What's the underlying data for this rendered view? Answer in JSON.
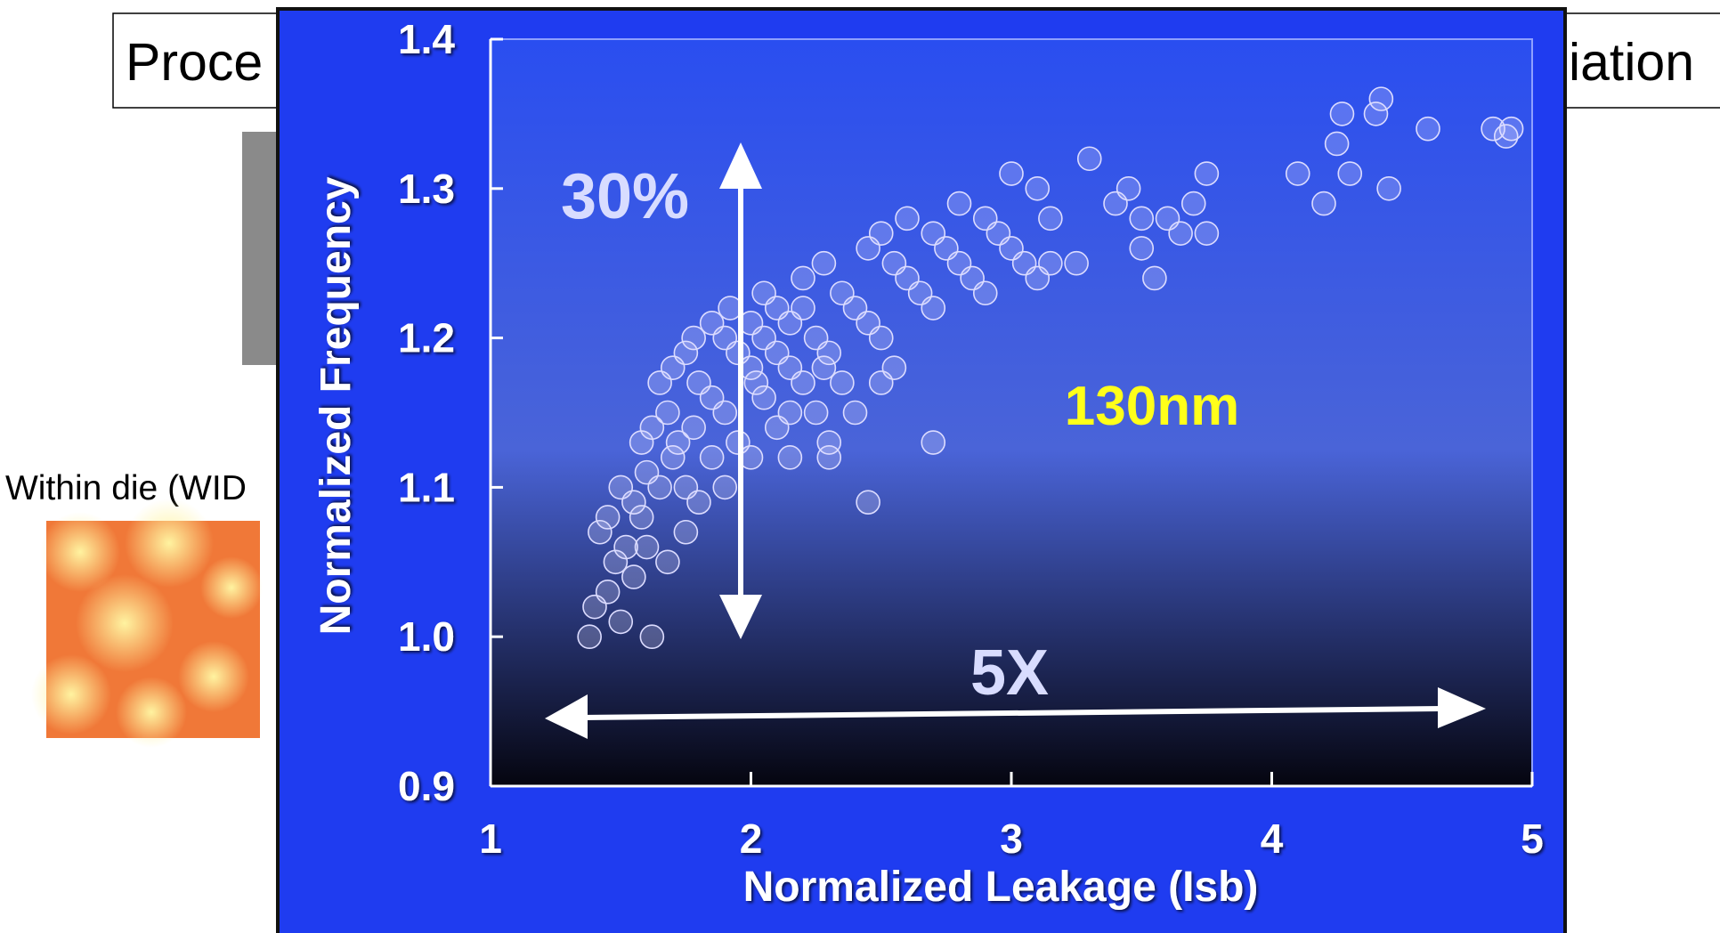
{
  "slide": {
    "title_left": "Proce",
    "title_right": "iation",
    "label": "Within die (WID"
  },
  "chart_data": {
    "type": "scatter",
    "y_label": "Normalized Frequency",
    "x_label": "Normalized Leakage (Isb)",
    "annotations": [
      "30%",
      "130nm",
      "5X"
    ],
    "color": "#dcdcff",
    "grid": false,
    "xlim": [
      1,
      5
    ],
    "xticks": [
      1,
      2,
      3,
      4,
      5
    ],
    "ylim": [
      0.9,
      1.4
    ],
    "yticks": [
      0.9,
      {
        "value": 1,
        "label": "1.0"
      },
      1.1,
      1.2,
      1.3,
      1.4
    ],
    "x": [
      1.38,
      1.4,
      1.45,
      1.5,
      1.62,
      1.48,
      1.55,
      1.6,
      1.68,
      1.75,
      1.45,
      1.5,
      1.55,
      1.6,
      1.65,
      1.7,
      1.75,
      1.8,
      1.58,
      1.62,
      1.68,
      1.72,
      1.78,
      1.85,
      1.9,
      1.65,
      1.7,
      1.75,
      1.8,
      1.85,
      1.9,
      1.95,
      2.0,
      1.78,
      1.85,
      1.9,
      1.95,
      2.0,
      2.05,
      2.1,
      2.15,
      1.92,
      2.0,
      2.05,
      2.1,
      2.15,
      2.2,
      2.25,
      2.3,
      2.05,
      2.1,
      2.15,
      2.2,
      2.25,
      2.3,
      2.35,
      2.4,
      2.2,
      2.28,
      2.35,
      2.4,
      2.45,
      2.5,
      2.55,
      2.45,
      2.5,
      2.55,
      2.6,
      2.65,
      2.7,
      2.6,
      2.7,
      2.75,
      2.8,
      2.85,
      2.9,
      2.8,
      2.9,
      2.95,
      3.0,
      3.05,
      3.1,
      3.0,
      3.1,
      3.15,
      3.15,
      2.5,
      2.3,
      2.7,
      2.45,
      2.15,
      3.3,
      3.4,
      3.45,
      3.5,
      3.5,
      3.55,
      3.6,
      3.65,
      3.7,
      3.75,
      3.75,
      3.25,
      4.1,
      4.2,
      4.25,
      4.3,
      4.27,
      4.4,
      4.42,
      4.45,
      4.6,
      4.85,
      4.9,
      4.92,
      1.42,
      1.52,
      1.58,
      2.02,
      2.28
    ],
    "values": [
      1.0,
      1.02,
      1.03,
      1.01,
      1.0,
      1.05,
      1.04,
      1.06,
      1.05,
      1.07,
      1.08,
      1.1,
      1.09,
      1.11,
      1.1,
      1.12,
      1.1,
      1.09,
      1.13,
      1.14,
      1.15,
      1.13,
      1.14,
      1.12,
      1.1,
      1.17,
      1.18,
      1.19,
      1.17,
      1.16,
      1.15,
      1.13,
      1.12,
      1.2,
      1.21,
      1.2,
      1.19,
      1.18,
      1.16,
      1.14,
      1.12,
      1.22,
      1.21,
      1.2,
      1.19,
      1.18,
      1.17,
      1.15,
      1.12,
      1.23,
      1.22,
      1.21,
      1.22,
      1.2,
      1.19,
      1.17,
      1.15,
      1.24,
      1.25,
      1.23,
      1.22,
      1.21,
      1.2,
      1.18,
      1.26,
      1.27,
      1.25,
      1.24,
      1.23,
      1.22,
      1.28,
      1.27,
      1.26,
      1.25,
      1.24,
      1.23,
      1.29,
      1.28,
      1.27,
      1.26,
      1.25,
      1.24,
      1.31,
      1.3,
      1.28,
      1.25,
      1.17,
      1.13,
      1.13,
      1.09,
      1.15,
      1.32,
      1.29,
      1.3,
      1.28,
      1.26,
      1.24,
      1.28,
      1.27,
      1.29,
      1.31,
      1.27,
      1.25,
      1.31,
      1.29,
      1.33,
      1.31,
      1.35,
      1.35,
      1.36,
      1.3,
      1.34,
      1.34,
      1.335,
      1.34,
      1.07,
      1.06,
      1.08,
      1.17,
      1.18
    ]
  }
}
